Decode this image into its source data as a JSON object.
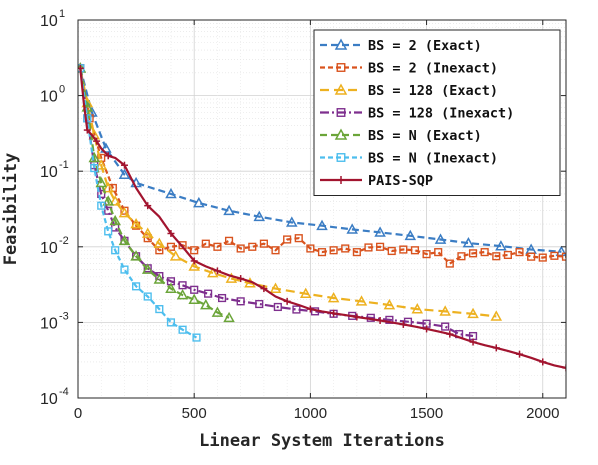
{
  "chart_data": {
    "type": "line",
    "xlabel": "Linear System Iterations",
    "ylabel": "Feasibility",
    "y_scale": "log",
    "xlim": [
      0,
      2100
    ],
    "ylim_exp": [
      -4,
      1
    ],
    "x_ticks": [
      0,
      500,
      1000,
      1500,
      2000
    ],
    "y_tick_exponents": [
      -4,
      -3,
      -2,
      -1,
      0,
      1
    ],
    "grid": true,
    "legend_position": "top-right",
    "series": [
      {
        "name": "BS = 2 (Exact)",
        "color": "#3b7dc4",
        "dash": "7,4",
        "marker": "triangle",
        "marker_filled": false,
        "x": [
          10,
          60,
          120,
          200,
          250,
          400,
          520,
          650,
          780,
          920,
          1050,
          1180,
          1300,
          1430,
          1560,
          1680,
          1820,
          1950,
          2080
        ],
        "y": [
          2.3,
          0.6,
          0.2,
          0.09,
          0.07,
          0.05,
          0.038,
          0.03,
          0.025,
          0.021,
          0.019,
          0.017,
          0.0155,
          0.014,
          0.0125,
          0.0112,
          0.0102,
          0.0092,
          0.0086
        ]
      },
      {
        "name": "BS = 2 (Inexact)",
        "color": "#d9531e",
        "dash": "5,3",
        "marker": "square",
        "marker_filled": false,
        "x": [
          10,
          50,
          100,
          150,
          200,
          250,
          300,
          350,
          400,
          450,
          500,
          550,
          600,
          650,
          700,
          750,
          800,
          850,
          900,
          950,
          1000,
          1050,
          1100,
          1150,
          1200,
          1250,
          1300,
          1350,
          1400,
          1450,
          1500,
          1550,
          1600,
          1650,
          1700,
          1750,
          1800,
          1850,
          1900,
          1950,
          2000,
          2050,
          2100
        ],
        "y": [
          2.3,
          0.5,
          0.15,
          0.06,
          0.03,
          0.019,
          0.013,
          0.009,
          0.01,
          0.0105,
          0.009,
          0.011,
          0.01,
          0.012,
          0.0095,
          0.01,
          0.011,
          0.009,
          0.0125,
          0.013,
          0.0095,
          0.0085,
          0.009,
          0.0095,
          0.0085,
          0.0098,
          0.01,
          0.0088,
          0.0092,
          0.009,
          0.008,
          0.0085,
          0.006,
          0.0075,
          0.0082,
          0.0085,
          0.0075,
          0.0078,
          0.0085,
          0.0074,
          0.0072,
          0.0076,
          0.0074
        ]
      },
      {
        "name": "BS = 128 (Exact)",
        "color": "#edb120",
        "dash": "9,5",
        "marker": "triangle",
        "marker_filled": false,
        "x": [
          10,
          40,
          70,
          100,
          130,
          160,
          200,
          250,
          300,
          350,
          420,
          500,
          580,
          660,
          740,
          850,
          980,
          1100,
          1220,
          1340,
          1460,
          1580,
          1700,
          1800
        ],
        "y": [
          2.3,
          0.8,
          0.3,
          0.12,
          0.06,
          0.04,
          0.028,
          0.02,
          0.015,
          0.011,
          0.0075,
          0.0055,
          0.0045,
          0.0038,
          0.0033,
          0.0028,
          0.0024,
          0.0021,
          0.0019,
          0.0017,
          0.0015,
          0.0014,
          0.0013,
          0.0012
        ]
      },
      {
        "name": "BS = 128 (Inexact)",
        "color": "#7e2f8e",
        "dash": "9,3,2,3",
        "marker": "square",
        "marker_filled": false,
        "x": [
          10,
          40,
          70,
          100,
          130,
          160,
          200,
          250,
          300,
          350,
          400,
          450,
          500,
          560,
          620,
          700,
          780,
          860,
          940,
          1020,
          1100,
          1180,
          1260,
          1340,
          1420,
          1500,
          1580,
          1640,
          1700
        ],
        "y": [
          2.3,
          0.5,
          0.12,
          0.05,
          0.03,
          0.018,
          0.012,
          0.0075,
          0.0052,
          0.0041,
          0.0035,
          0.0031,
          0.0027,
          0.0024,
          0.0021,
          0.0019,
          0.00175,
          0.0016,
          0.00148,
          0.0014,
          0.0013,
          0.00122,
          0.00115,
          0.00108,
          0.00102,
          0.00096,
          0.00088,
          0.0007,
          0.00066
        ]
      },
      {
        "name": "BS = N (Exact)",
        "color": "#6ba539",
        "dash": "7,4",
        "marker": "triangle",
        "marker_filled": false,
        "x": [
          10,
          40,
          70,
          100,
          130,
          160,
          200,
          250,
          300,
          350,
          400,
          450,
          500,
          550,
          600,
          650
        ],
        "y": [
          2.3,
          0.7,
          0.15,
          0.07,
          0.04,
          0.022,
          0.012,
          0.0075,
          0.005,
          0.0037,
          0.0028,
          0.0023,
          0.002,
          0.0017,
          0.00135,
          0.00115
        ]
      },
      {
        "name": "BS = N (Inexact)",
        "color": "#4dbeee",
        "dash": "5,3",
        "marker": "square",
        "marker_filled": false,
        "x": [
          10,
          40,
          70,
          100,
          130,
          160,
          200,
          250,
          300,
          350,
          400,
          450,
          510
        ],
        "y": [
          2.3,
          0.5,
          0.11,
          0.035,
          0.016,
          0.009,
          0.005,
          0.003,
          0.0022,
          0.0015,
          0.001,
          0.0008,
          0.00063
        ]
      },
      {
        "name": "PAIS-SQP",
        "color": "#a2142f",
        "dash": "",
        "marker": "plus",
        "marker_filled": true,
        "x": [
          10,
          25,
          40,
          60,
          80,
          100,
          130,
          160,
          200,
          250,
          300,
          350,
          400,
          450,
          500,
          550,
          600,
          650,
          700,
          750,
          800,
          850,
          900,
          950,
          1000,
          1050,
          1100,
          1150,
          1200,
          1250,
          1300,
          1350,
          1400,
          1450,
          1500,
          1550,
          1600,
          1650,
          1700,
          1750,
          1800,
          1850,
          1900,
          1950,
          2000,
          2050,
          2100
        ],
        "y": [
          2.3,
          0.8,
          0.35,
          0.3,
          0.25,
          0.2,
          0.16,
          0.15,
          0.12,
          0.06,
          0.035,
          0.025,
          0.015,
          0.01,
          0.0065,
          0.0055,
          0.0048,
          0.0042,
          0.0038,
          0.0034,
          0.0028,
          0.0022,
          0.0019,
          0.0017,
          0.0015,
          0.0014,
          0.00132,
          0.00125,
          0.00118,
          0.00112,
          0.00106,
          0.001,
          0.00094,
          0.00088,
          0.00082,
          0.00076,
          0.0007,
          0.00062,
          0.00055,
          0.0005,
          0.00046,
          0.00042,
          0.00038,
          0.00034,
          0.0003,
          0.00027,
          0.00025
        ]
      }
    ]
  }
}
